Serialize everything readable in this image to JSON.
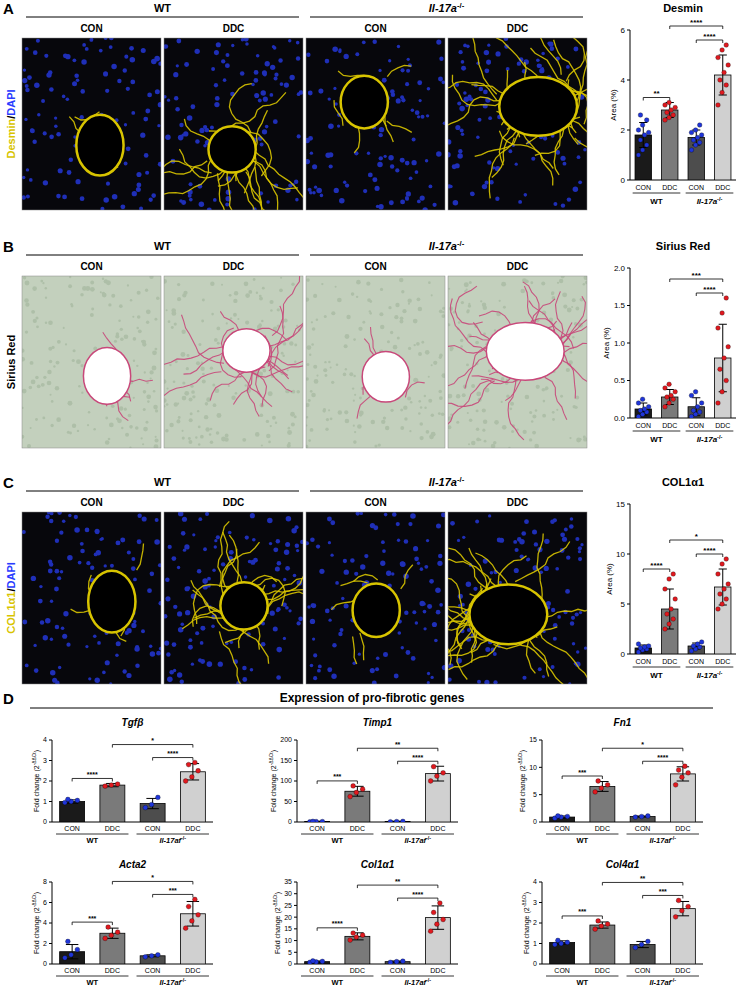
{
  "figure": {
    "panels": [
      {
        "letter": "A",
        "stain": [
          "Desmin",
          "/",
          "DAPI"
        ],
        "stain_colors": [
          "#d8c400",
          "#000000",
          "#2a3cff"
        ],
        "mode": "fluorescence",
        "groups": [
          [
            "WT"
          ],
          [
            "Il-17a",
            "-/-"
          ]
        ],
        "conditions": [
          "CON",
          "DDC",
          "CON",
          "DDC"
        ]
      },
      {
        "letter": "B",
        "stain": [
          "Sirius Red"
        ],
        "stain_colors": [
          "#000000"
        ],
        "mode": "brightfield",
        "groups": [
          [
            "WT"
          ],
          [
            "Il-17a",
            "-/-"
          ]
        ],
        "conditions": [
          "CON",
          "DDC",
          "CON",
          "DDC"
        ]
      },
      {
        "letter": "C",
        "stain": [
          "COL1α1",
          "/",
          "DAPI"
        ],
        "stain_colors": [
          "#d8c400",
          "#000000",
          "#2a3cff"
        ],
        "mode": "fluorescence",
        "groups": [
          [
            "WT"
          ],
          [
            "Il-17a",
            "-/-"
          ]
        ],
        "conditions": [
          "CON",
          "DDC",
          "CON",
          "DDC"
        ]
      }
    ],
    "expression": {
      "letter": "D",
      "title": "Expression of pro-fibrotic genes"
    }
  },
  "chart_data": [
    {
      "type": "bar",
      "title": "Desmin",
      "y_label": "Area (%)",
      "categories": [
        "CON",
        "DDC",
        "CON",
        "DDC"
      ],
      "groups": [
        [
          "WT"
        ],
        [
          "Il-17a",
          "-/-"
        ]
      ],
      "values": [
        1.8,
        2.8,
        1.7,
        4.2
      ],
      "errors": [
        0.5,
        0.3,
        0.3,
        0.8
      ],
      "points": [
        [
          1.0,
          1.2,
          1.4,
          1.6,
          1.8,
          1.9,
          2.0,
          2.2,
          2.4,
          2.6
        ],
        [
          2.4,
          2.5,
          2.6,
          2.7,
          2.8,
          2.9,
          3.0,
          3.1
        ],
        [
          1.2,
          1.4,
          1.5,
          1.6,
          1.7,
          1.8,
          1.9,
          2.0,
          2.2
        ],
        [
          3.0,
          3.5,
          3.8,
          4.0,
          4.3,
          4.6,
          4.9,
          5.2,
          5.4
        ]
      ],
      "colors": [
        "#1a1a1a",
        "#7a7a7a",
        "#4d4d4d",
        "#d0d0d0"
      ],
      "point_colors": [
        "#1f35d9",
        "#e0191f",
        "#1f35d9",
        "#e0191f"
      ],
      "ylim": [
        0,
        6
      ],
      "yticks": [
        0,
        2,
        4,
        6
      ],
      "significance": [
        {
          "pair": [
            0,
            1
          ],
          "label": "**"
        },
        {
          "pair": [
            2,
            3
          ],
          "label": "****"
        },
        {
          "pair": [
            1,
            3
          ],
          "label": "****"
        }
      ]
    },
    {
      "type": "bar",
      "title": "Sirius Red",
      "y_label": "Area (%)",
      "categories": [
        "CON",
        "DDC",
        "CON",
        "DDC"
      ],
      "groups": [
        [
          "WT"
        ],
        [
          "Il-17a",
          "-/-"
        ]
      ],
      "values": [
        0.12,
        0.28,
        0.15,
        0.8
      ],
      "errors": [
        0.08,
        0.1,
        0.12,
        0.45
      ],
      "points": [
        [
          0.02,
          0.05,
          0.08,
          0.1,
          0.12,
          0.15,
          0.2,
          0.25
        ],
        [
          0.15,
          0.2,
          0.25,
          0.28,
          0.3,
          0.35,
          0.4,
          0.45
        ],
        [
          0.02,
          0.05,
          0.08,
          0.1,
          0.15,
          0.2,
          0.3,
          0.35
        ],
        [
          0.2,
          0.35,
          0.5,
          0.65,
          0.8,
          0.95,
          1.2,
          1.4,
          1.6
        ]
      ],
      "colors": [
        "#1a1a1a",
        "#7a7a7a",
        "#4d4d4d",
        "#d0d0d0"
      ],
      "point_colors": [
        "#1f35d9",
        "#e0191f",
        "#1f35d9",
        "#e0191f"
      ],
      "ylim": [
        0,
        2
      ],
      "yticks": [
        {
          "value": 0,
          "label": "0.0"
        },
        0.5,
        {
          "value": 1,
          "label": "1.0"
        },
        1.5,
        {
          "value": 2,
          "label": "2.0"
        }
      ],
      "significance": [
        {
          "pair": [
            2,
            3
          ],
          "label": "****"
        },
        {
          "pair": [
            1,
            3
          ],
          "label": "***"
        }
      ]
    },
    {
      "type": "bar",
      "title": "COL1α1",
      "y_label": "Area (%)",
      "categories": [
        "CON",
        "DDC",
        "CON",
        "DDC"
      ],
      "groups": [
        [
          "WT"
        ],
        [
          "Il-17a",
          "-/-"
        ]
      ],
      "values": [
        0.6,
        4.5,
        0.8,
        6.7
      ],
      "errors": [
        0.3,
        2.0,
        0.3,
        1.8
      ],
      "points": [
        [
          0.2,
          0.4,
          0.5,
          0.6,
          0.7,
          0.8,
          1.0
        ],
        [
          2.5,
          3.0,
          3.5,
          4.0,
          4.5,
          5.5,
          6.5,
          7.5,
          8.0
        ],
        [
          0.3,
          0.5,
          0.7,
          0.8,
          1.0,
          1.2
        ],
        [
          4.5,
          5.0,
          5.5,
          6.0,
          6.5,
          7.0,
          8.0,
          9.0,
          9.5
        ]
      ],
      "colors": [
        "#1a1a1a",
        "#7a7a7a",
        "#4d4d4d",
        "#d0d0d0"
      ],
      "point_colors": [
        "#1f35d9",
        "#e0191f",
        "#1f35d9",
        "#e0191f"
      ],
      "ylim": [
        0,
        15
      ],
      "yticks": [
        0,
        5,
        10,
        15
      ],
      "significance": [
        {
          "pair": [
            0,
            1
          ],
          "label": "****"
        },
        {
          "pair": [
            2,
            3
          ],
          "label": "****"
        },
        {
          "pair": [
            1,
            3
          ],
          "label": "*"
        }
      ]
    },
    {
      "type": "bar",
      "title": "Tgfβ",
      "y_label": [
        "Fold change (2",
        "-ΔΔCt",
        ")"
      ],
      "categories": [
        "CON",
        "DDC",
        "CON",
        "DDC"
      ],
      "groups": [
        [
          "WT"
        ],
        [
          "Il-17af",
          "-/-"
        ]
      ],
      "values": [
        1.0,
        1.8,
        0.9,
        2.45
      ],
      "errors": [
        0.08,
        0.08,
        0.25,
        0.4
      ],
      "points": [
        [
          0.95,
          1.0,
          1.05,
          1.1
        ],
        [
          1.75,
          1.8,
          1.85
        ],
        [
          0.7,
          0.85,
          1.2
        ],
        [
          2.0,
          2.2,
          2.5,
          2.8,
          2.9
        ]
      ],
      "colors": [
        "#1a1a1a",
        "#7a7a7a",
        "#4d4d4d",
        "#d0d0d0"
      ],
      "point_colors": [
        "#1f35d9",
        "#e0191f",
        "#1f35d9",
        "#e0191f"
      ],
      "ylim": [
        0,
        4
      ],
      "yticks": [
        0,
        1,
        2,
        3,
        4
      ],
      "significance": [
        {
          "pair": [
            0,
            1
          ],
          "label": "****"
        },
        {
          "pair": [
            2,
            3
          ],
          "label": "****"
        },
        {
          "pair": [
            1,
            3
          ],
          "label": "*"
        }
      ]
    },
    {
      "type": "bar",
      "title": "Timp1",
      "y_label": [
        "Fold change (2",
        "-ΔΔCt",
        ")"
      ],
      "categories": [
        "CON",
        "DDC",
        "CON",
        "DDC"
      ],
      "groups": [
        [
          "WT"
        ],
        [
          "Il-17af",
          "-/-"
        ]
      ],
      "values": [
        1,
        75,
        1,
        118
      ],
      "errors": [
        1,
        12,
        1,
        18
      ],
      "points": [
        [
          0.5,
          1,
          1,
          1.5
        ],
        [
          62,
          72,
          80,
          88
        ],
        [
          0.5,
          1,
          1.5
        ],
        [
          100,
          112,
          120,
          135
        ]
      ],
      "colors": [
        "#1a1a1a",
        "#7a7a7a",
        "#4d4d4d",
        "#d0d0d0"
      ],
      "point_colors": [
        "#1f35d9",
        "#e0191f",
        "#1f35d9",
        "#e0191f"
      ],
      "ylim": [
        0,
        200
      ],
      "yticks": [
        0,
        50,
        100,
        150,
        200
      ],
      "significance": [
        {
          "pair": [
            0,
            1
          ],
          "label": "***"
        },
        {
          "pair": [
            2,
            3
          ],
          "label": "****"
        },
        {
          "pair": [
            1,
            3
          ],
          "label": "**"
        }
      ]
    },
    {
      "type": "bar",
      "title": "Fn1",
      "y_label": [
        "Fold change (2",
        "-ΔΔCt",
        ")"
      ],
      "categories": [
        "CON",
        "DDC",
        "CON",
        "DDC"
      ],
      "groups": [
        [
          "WT"
        ],
        [
          "Il-17af",
          "-/-"
        ]
      ],
      "values": [
        0.9,
        6.5,
        1.0,
        8.8
      ],
      "errors": [
        0.2,
        0.9,
        0.1,
        1.3
      ],
      "points": [
        [
          0.7,
          0.9,
          1.0,
          1.1
        ],
        [
          5.5,
          6.2,
          6.8,
          7.5
        ],
        [
          0.9,
          1.0,
          1.1
        ],
        [
          6.8,
          8.2,
          9.0,
          9.5,
          10.2
        ]
      ],
      "colors": [
        "#1a1a1a",
        "#7a7a7a",
        "#4d4d4d",
        "#d0d0d0"
      ],
      "point_colors": [
        "#1f35d9",
        "#e0191f",
        "#1f35d9",
        "#e0191f"
      ],
      "ylim": [
        0,
        15
      ],
      "yticks": [
        0,
        5,
        10,
        15
      ],
      "significance": [
        {
          "pair": [
            0,
            1
          ],
          "label": "***"
        },
        {
          "pair": [
            2,
            3
          ],
          "label": "****"
        },
        {
          "pair": [
            1,
            3
          ],
          "label": "*"
        }
      ]
    },
    {
      "type": "bar",
      "title": "Acta2",
      "y_label": [
        "Fold change (2",
        "-ΔΔCt",
        ")"
      ],
      "categories": [
        "CON",
        "DDC",
        "CON",
        "DDC"
      ],
      "groups": [
        [
          "WT"
        ],
        [
          "Il-17af",
          "-/-"
        ]
      ],
      "values": [
        1.2,
        3.0,
        0.8,
        4.9
      ],
      "errors": [
        0.7,
        0.5,
        0.1,
        1.2
      ],
      "points": [
        [
          0.6,
          0.9,
          1.4,
          2.2
        ],
        [
          2.5,
          2.8,
          3.1,
          3.6
        ],
        [
          0.7,
          0.8,
          0.9
        ],
        [
          3.5,
          4.2,
          4.8,
          5.6,
          6.3
        ]
      ],
      "colors": [
        "#1a1a1a",
        "#7a7a7a",
        "#4d4d4d",
        "#d0d0d0"
      ],
      "point_colors": [
        "#1f35d9",
        "#e0191f",
        "#1f35d9",
        "#e0191f"
      ],
      "ylim": [
        0,
        8
      ],
      "yticks": [
        0,
        2,
        4,
        6,
        8
      ],
      "significance": [
        {
          "pair": [
            0,
            1
          ],
          "label": "***"
        },
        {
          "pair": [
            2,
            3
          ],
          "label": "***"
        },
        {
          "pair": [
            1,
            3
          ],
          "label": "*"
        }
      ]
    },
    {
      "type": "bar",
      "title": "Col1α1",
      "y_label": [
        "Fold change (2",
        "-ΔΔCt",
        ")"
      ],
      "categories": [
        "CON",
        "DDC",
        "CON",
        "DDC"
      ],
      "groups": [
        [
          "WT"
        ],
        [
          "Il-17af",
          "-/-"
        ]
      ],
      "values": [
        1,
        11.8,
        1,
        19.8
      ],
      "errors": [
        0.3,
        1.5,
        0.3,
        5
      ],
      "points": [
        [
          0.7,
          0.9,
          1.1,
          1.3
        ],
        [
          10.2,
          11.5,
          12.3,
          13.2
        ],
        [
          0.7,
          1.0,
          1.2
        ],
        [
          14,
          17,
          19,
          22,
          26
        ]
      ],
      "colors": [
        "#1a1a1a",
        "#7a7a7a",
        "#4d4d4d",
        "#d0d0d0"
      ],
      "point_colors": [
        "#1f35d9",
        "#e0191f",
        "#1f35d9",
        "#e0191f"
      ],
      "ylim": [
        0,
        35
      ],
      "yticks": [
        0,
        5,
        10,
        15,
        20,
        25,
        30,
        35
      ],
      "significance": [
        {
          "pair": [
            0,
            1
          ],
          "label": "****"
        },
        {
          "pair": [
            2,
            3
          ],
          "label": "****"
        },
        {
          "pair": [
            1,
            3
          ],
          "label": "**"
        }
      ]
    },
    {
      "type": "bar",
      "title": "Col4α1",
      "y_label": [
        "Fold change (2",
        "-ΔΔCt",
        ")"
      ],
      "categories": [
        "CON",
        "DDC",
        "CON",
        "DDC"
      ],
      "groups": [
        [
          "WT"
        ],
        [
          "Il-17af",
          "-/-"
        ]
      ],
      "values": [
        1.05,
        1.9,
        0.95,
        2.7
      ],
      "errors": [
        0.08,
        0.15,
        0.15,
        0.35
      ],
      "points": [
        [
          0.95,
          1.0,
          1.05,
          1.15
        ],
        [
          1.7,
          1.85,
          1.95,
          2.1
        ],
        [
          0.8,
          0.95,
          1.1
        ],
        [
          2.3,
          2.6,
          2.8,
          3.1
        ]
      ],
      "colors": [
        "#1a1a1a",
        "#7a7a7a",
        "#4d4d4d",
        "#d0d0d0"
      ],
      "point_colors": [
        "#1f35d9",
        "#e0191f",
        "#1f35d9",
        "#e0191f"
      ],
      "ylim": [
        0,
        4
      ],
      "yticks": [
        0,
        1,
        2,
        3,
        4
      ],
      "significance": [
        {
          "pair": [
            0,
            1
          ],
          "label": "***"
        },
        {
          "pair": [
            2,
            3
          ],
          "label": "***"
        },
        {
          "pair": [
            1,
            3
          ],
          "label": "**"
        }
      ]
    }
  ]
}
